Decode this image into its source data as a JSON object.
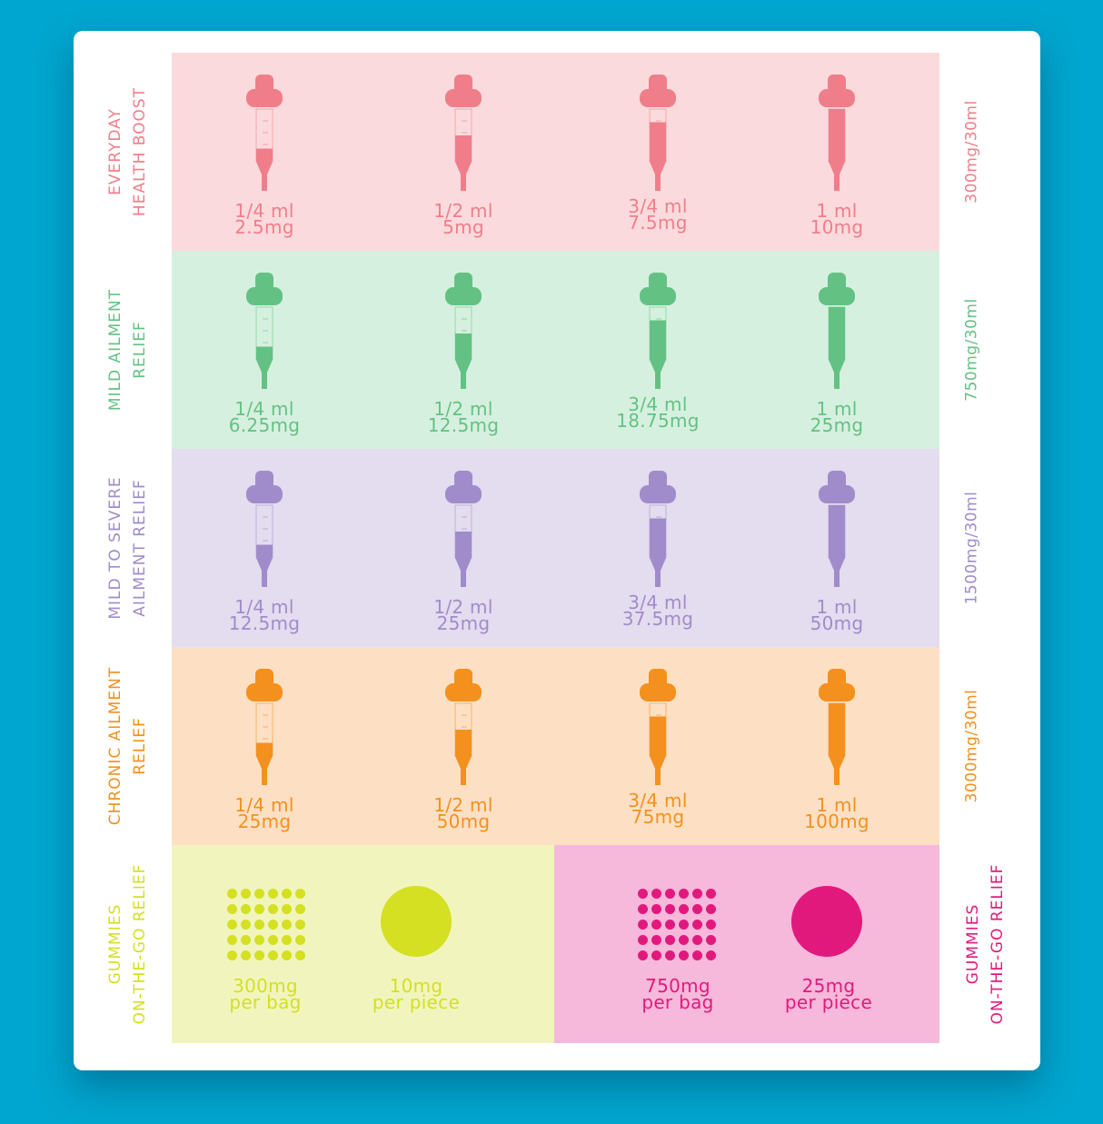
{
  "tiers": [
    {
      "label": [
        "EVERYDAY",
        "HEALTH BOOST"
      ],
      "strength": "300mg/30ml",
      "color": "#f07e8a",
      "bg": "#fbdadd",
      "doses": [
        {
          "volume": "1/4 ml",
          "amount": "2.5mg",
          "fill": 0.25
        },
        {
          "volume": "1/2 ml",
          "amount": "5mg",
          "fill": 0.5
        },
        {
          "volume": "3/4 ml",
          "amount": "7.5mg",
          "fill": 0.75
        },
        {
          "volume": "1 ml",
          "amount": "10mg",
          "fill": 1.0
        }
      ]
    },
    {
      "label": [
        "MILD AILMENT",
        "RELIEF"
      ],
      "strength": "750mg/30ml",
      "color": "#63c283",
      "bg": "#d6f0e0",
      "doses": [
        {
          "volume": "1/4 ml",
          "amount": "6.25mg",
          "fill": 0.25
        },
        {
          "volume": "1/2 ml",
          "amount": "12.5mg",
          "fill": 0.5
        },
        {
          "volume": "3/4 ml",
          "amount": "18.75mg",
          "fill": 0.75
        },
        {
          "volume": "1 ml",
          "amount": "25mg",
          "fill": 1.0
        }
      ]
    },
    {
      "label": [
        "MILD TO SEVERE",
        "AILMENT RELIEF"
      ],
      "strength": "1500mg/30ml",
      "color": "#a08cca",
      "bg": "#e4dcef",
      "doses": [
        {
          "volume": "1/4 ml",
          "amount": "12.5mg",
          "fill": 0.25
        },
        {
          "volume": "1/2 ml",
          "amount": "25mg",
          "fill": 0.5
        },
        {
          "volume": "3/4 ml",
          "amount": "37.5mg",
          "fill": 0.75
        },
        {
          "volume": "1 ml",
          "amount": "50mg",
          "fill": 1.0
        }
      ]
    },
    {
      "label": [
        "CHRONIC AILMENT",
        "RELIEF"
      ],
      "strength": "3000mg/30ml",
      "color": "#f4901e",
      "bg": "#fde0c4",
      "doses": [
        {
          "volume": "1/4 ml",
          "amount": "25mg",
          "fill": 0.25
        },
        {
          "volume": "1/2 ml",
          "amount": "50mg",
          "fill": 0.5
        },
        {
          "volume": "3/4 ml",
          "amount": "75mg",
          "fill": 0.75
        },
        {
          "volume": "1 ml",
          "amount": "100mg",
          "fill": 1.0
        }
      ]
    }
  ],
  "gummies": [
    {
      "label": [
        "GUMMIES",
        "ON-THE-GO RELIEF"
      ],
      "color": "#d4e021",
      "bg": "#f1f5bd",
      "bag": [
        "300mg",
        "per bag"
      ],
      "piece": [
        "10mg",
        "per piece"
      ]
    },
    {
      "label": [
        "GUMMIES",
        "ON-THE-GO RELIEF"
      ],
      "color": "#e2197d",
      "bg": "#f6b8db",
      "bag": [
        "750mg",
        "per bag"
      ],
      "piece": [
        "25mg",
        "per piece"
      ]
    }
  ]
}
